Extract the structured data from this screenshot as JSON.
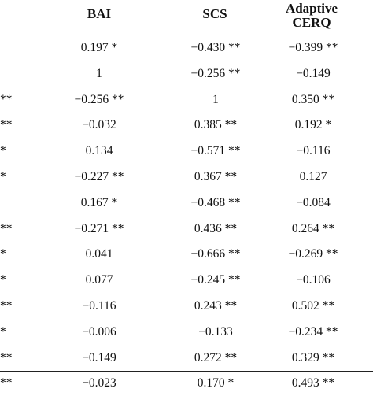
{
  "table": {
    "headers": {
      "bai": "BAI",
      "scs": "SCS",
      "cerq_line1": "Adaptive",
      "cerq_line2": "CERQ"
    },
    "rows": [
      {
        "cut": "",
        "bai": "0.197 *",
        "scs": "−0.430 **",
        "cerq": "−0.399 **"
      },
      {
        "cut": "",
        "bai": "1",
        "scs": "−0.256 **",
        "cerq": "−0.149"
      },
      {
        "cut": "**",
        "bai": "−0.256 **",
        "scs": "1",
        "cerq": "0.350 **"
      },
      {
        "cut": "**",
        "bai": "−0.032",
        "scs": "0.385 **",
        "cerq": "0.192 *"
      },
      {
        "cut": "*",
        "bai": "0.134",
        "scs": "−0.571 **",
        "cerq": "−0.116"
      },
      {
        "cut": "*",
        "bai": "−0.227 **",
        "scs": "0.367 **",
        "cerq": "0.127"
      },
      {
        "cut": "",
        "bai": "0.167 *",
        "scs": "−0.468 **",
        "cerq": "−0.084"
      },
      {
        "cut": "**",
        "bai": "−0.271 **",
        "scs": "0.436 **",
        "cerq": "0.264 **"
      },
      {
        "cut": "*",
        "bai": "0.041",
        "scs": "−0.666 **",
        "cerq": "−0.269 **"
      },
      {
        "cut": "*",
        "bai": "0.077",
        "scs": "−0.245 **",
        "cerq": "−0.106"
      },
      {
        "cut": "**",
        "bai": "−0.116",
        "scs": "0.243 **",
        "cerq": "0.502 **"
      },
      {
        "cut": "*",
        "bai": "−0.006",
        "scs": "−0.133",
        "cerq": "−0.234 **"
      },
      {
        "cut": "**",
        "bai": "−0.149",
        "scs": "0.272 **",
        "cerq": "0.329 **"
      },
      {
        "cut": "**",
        "bai": "−0.023",
        "scs": "0.170 *",
        "cerq": "0.493 **"
      }
    ]
  }
}
